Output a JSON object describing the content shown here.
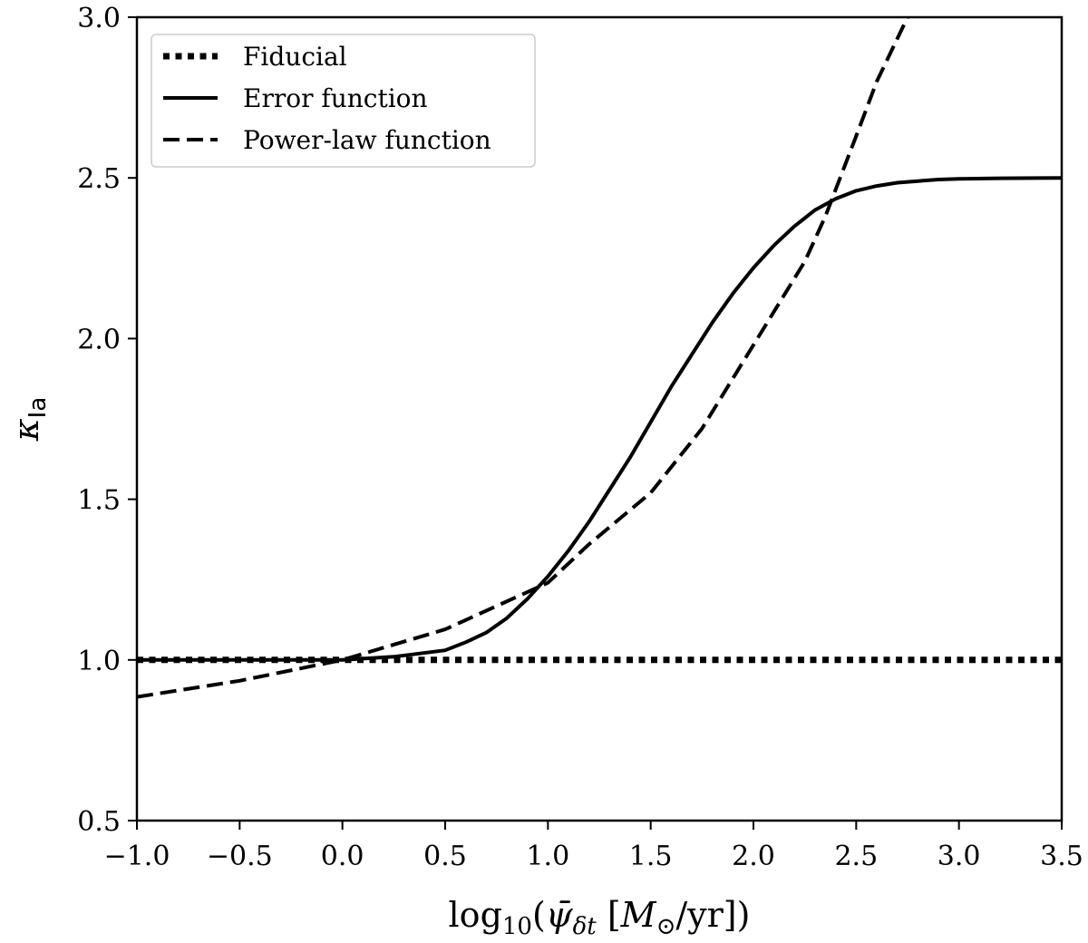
{
  "chart_data": {
    "type": "line",
    "title": "",
    "xlabel": {
      "prefix": "log",
      "sub": "10",
      "open": "(",
      "psi": "ψ̄",
      "psi_sub": "δt",
      "units_open": " [",
      "M": "M",
      "M_sub": "⊙",
      "units_rest": "/yr])"
    },
    "ylabel": {
      "main": "κ",
      "sub": "Ia"
    },
    "xlim": [
      -1.0,
      3.5
    ],
    "ylim": [
      0.5,
      3.0
    ],
    "xticks": [
      -1.0,
      -0.5,
      0.0,
      0.5,
      1.0,
      1.5,
      2.0,
      2.5,
      3.0,
      3.5
    ],
    "xtick_labels": [
      "−1.0",
      "−0.5",
      "0.0",
      "0.5",
      "1.0",
      "1.5",
      "2.0",
      "2.5",
      "3.0",
      "3.5"
    ],
    "yticks": [
      0.5,
      1.0,
      1.5,
      2.0,
      2.5,
      3.0
    ],
    "ytick_labels": [
      "0.5",
      "1.0",
      "1.5",
      "2.0",
      "2.5",
      "3.0"
    ],
    "grid": false,
    "legend_position": "top-left",
    "series": [
      {
        "name": "Fiducial",
        "style": "dotted",
        "x": [
          -1.0,
          3.5
        ],
        "y": [
          1.0,
          1.0
        ]
      },
      {
        "name": "Error function",
        "style": "solid",
        "x": [
          -1.0,
          0.0,
          0.25,
          0.5,
          0.6,
          0.7,
          0.8,
          0.9,
          1.0,
          1.1,
          1.2,
          1.3,
          1.4,
          1.5,
          1.6,
          1.7,
          1.8,
          1.9,
          2.0,
          2.1,
          2.2,
          2.3,
          2.4,
          2.5,
          2.6,
          2.7,
          2.8,
          2.9,
          3.0,
          3.2,
          3.5
        ],
        "y": [
          1.0,
          1.0,
          1.01,
          1.03,
          1.055,
          1.085,
          1.13,
          1.19,
          1.26,
          1.34,
          1.43,
          1.53,
          1.63,
          1.74,
          1.85,
          1.95,
          2.05,
          2.14,
          2.22,
          2.29,
          2.35,
          2.4,
          2.435,
          2.46,
          2.475,
          2.485,
          2.49,
          2.495,
          2.497,
          2.499,
          2.5
        ]
      },
      {
        "name": "Power-law function",
        "style": "dashed",
        "x": [
          -1.0,
          -0.5,
          0.0,
          0.5,
          1.0,
          1.2,
          1.5,
          1.75,
          2.0,
          2.25,
          2.35,
          2.5,
          2.6,
          2.75
        ],
        "y": [
          0.885,
          0.935,
          1.0,
          1.095,
          1.24,
          1.36,
          1.52,
          1.72,
          1.98,
          2.24,
          2.38,
          2.63,
          2.8,
          3.0
        ]
      }
    ]
  }
}
